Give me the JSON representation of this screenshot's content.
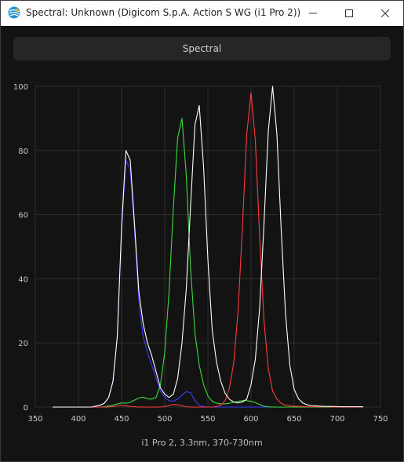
{
  "window": {
    "title": "Spectral: Unknown (Digicom S.p.A. Action S WG (i1 Pro 2))",
    "icon": "app-color-wheel-icon",
    "controls": [
      "minimize-icon",
      "maximize-icon",
      "close-icon"
    ]
  },
  "toolbar": {
    "spectral_label": "Spectral"
  },
  "footer": {
    "instrument_label": "i1 Pro 2, 3.3nm, 370-730nm"
  },
  "colors": {
    "red": "#ff3b3b",
    "green": "#3ddc3d",
    "blue": "#2b2bff",
    "white": "#ffffff",
    "grid": "#2e2e2e",
    "background": "#131313"
  },
  "chart_data": {
    "type": "line",
    "xlim": [
      350,
      750
    ],
    "ylim": [
      0,
      100
    ],
    "x_ticks": [
      350,
      400,
      450,
      500,
      550,
      600,
      650,
      700,
      750
    ],
    "y_ticks": [
      0,
      20,
      40,
      60,
      80,
      100
    ],
    "grid": true,
    "x_step": 5,
    "x_start": 370,
    "series": [
      {
        "color": "#3b3bff",
        "values": [
          0,
          0,
          0,
          0,
          0,
          0,
          0,
          0,
          0,
          0,
          0.2,
          0.5,
          1.2,
          3,
          8,
          22,
          55,
          77,
          74,
          55,
          33,
          22,
          17,
          13,
          9,
          5,
          3,
          2,
          1.8,
          2.5,
          3.8,
          4.8,
          4.5,
          2,
          0.5,
          0.2,
          0,
          0,
          0,
          0,
          0,
          0,
          0,
          0,
          0,
          0,
          0,
          0,
          0,
          0,
          0,
          0,
          0,
          0,
          0,
          0,
          0,
          0,
          0,
          0,
          0,
          0,
          0,
          0,
          0,
          0,
          0,
          0,
          0,
          0,
          0,
          0,
          0
        ]
      },
      {
        "color": "#3ddc3d",
        "values": [
          0,
          0,
          0,
          0,
          0,
          0,
          0,
          0,
          0,
          0,
          0,
          0,
          0.1,
          0.3,
          0.6,
          1,
          1.3,
          1.2,
          1.5,
          2.2,
          2.8,
          3.1,
          2.6,
          2.5,
          3,
          7,
          17,
          36,
          62,
          84,
          90,
          72,
          43,
          23,
          13,
          7,
          3.5,
          1.8,
          1.2,
          1,
          1,
          1.2,
          1.5,
          1.8,
          2,
          2,
          1.8,
          1.4,
          0.8,
          0.3,
          0.1,
          0,
          0,
          0,
          0,
          0,
          0,
          0,
          0,
          0,
          0,
          0,
          0,
          0,
          0,
          0,
          0,
          0,
          0,
          0,
          0,
          0,
          0
        ]
      },
      {
        "color": "#ff3b3b",
        "values": [
          0,
          0,
          0,
          0,
          0,
          0,
          0,
          0,
          0,
          0,
          0,
          0,
          0,
          0,
          0.2,
          0.4,
          0.6,
          0.4,
          0.2,
          0.1,
          0,
          0,
          0,
          0,
          0,
          0,
          0.2,
          0.5,
          0.8,
          0.7,
          0.4,
          0.1,
          0,
          0,
          0,
          0,
          0,
          0,
          0.2,
          0.6,
          2,
          6,
          14,
          30,
          56,
          85,
          98,
          83,
          53,
          27,
          12,
          5,
          2.5,
          1.2,
          0.6,
          0.4,
          0.3,
          0.2,
          0.2,
          0.1,
          0.1,
          0.1,
          0.1,
          0.1,
          0.1,
          0,
          0,
          0,
          0,
          0,
          0,
          0,
          0
        ]
      },
      {
        "color": "#ffffff",
        "values": [
          0,
          0,
          0,
          0,
          0,
          0,
          0,
          0,
          0,
          0,
          0.3,
          0.6,
          1.2,
          3,
          8,
          22,
          56,
          80,
          77,
          57,
          36,
          26,
          20,
          16,
          11,
          6,
          4,
          3,
          4,
          9,
          20,
          37,
          63,
          88,
          94,
          75,
          46,
          24,
          14,
          8,
          4.3,
          2.4,
          1.6,
          1.3,
          1.6,
          2.5,
          7,
          15,
          31,
          57,
          86,
          100,
          85,
          55,
          29,
          13,
          5.5,
          2.6,
          1.3,
          0.7,
          0.5,
          0.4,
          0.3,
          0.2,
          0.2,
          0.2,
          0.1,
          0.1,
          0.1,
          0.1,
          0.1,
          0.1,
          0.1
        ]
      }
    ]
  }
}
